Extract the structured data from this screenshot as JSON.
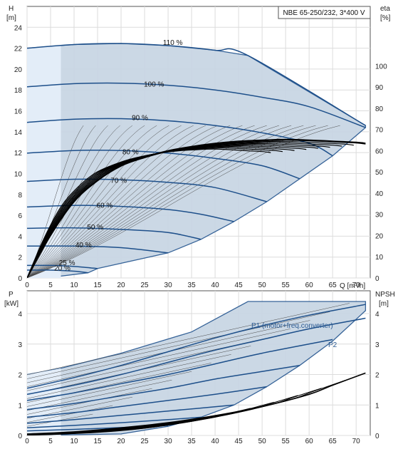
{
  "chart_data": [
    {
      "type": "line",
      "title": "NBE 65-250/232, 3*400 V",
      "xlabel": "Q [m³/h]",
      "ylabel": "H",
      "ylabel_unit": "[m]",
      "y2label": "eta",
      "y2label_unit": "[%]",
      "xlim": [
        0,
        73
      ],
      "ylim": [
        0,
        26
      ],
      "y2lim": [
        0,
        128
      ],
      "xticks": [
        0,
        5,
        10,
        15,
        20,
        25,
        30,
        35,
        40,
        45,
        50,
        55,
        60,
        65,
        70
      ],
      "yticks": [
        0,
        2,
        4,
        6,
        8,
        10,
        12,
        14,
        16,
        18,
        20,
        22,
        24
      ],
      "y2ticks": [
        0,
        10,
        20,
        30,
        40,
        50,
        60,
        70,
        80,
        90,
        100
      ],
      "grid": true,
      "head_curves": [
        {
          "name": "110 %",
          "x": [
            0,
            10,
            20,
            30,
            40,
            47,
            72
          ],
          "y": [
            22.0,
            22.35,
            22.45,
            22.25,
            21.8,
            21.3,
            14.6
          ]
        },
        {
          "name": "100 %",
          "x": [
            0,
            10,
            20,
            30,
            40,
            50,
            60,
            72
          ],
          "y": [
            18.3,
            18.6,
            18.65,
            18.45,
            18.0,
            17.3,
            16.4,
            14.4
          ]
        },
        {
          "name": "90 %",
          "x": [
            0,
            10,
            20,
            30,
            40,
            50,
            60,
            65
          ],
          "y": [
            14.9,
            15.2,
            15.25,
            15.05,
            14.6,
            13.9,
            12.9,
            11.7
          ]
        },
        {
          "name": "80 %",
          "x": [
            0,
            10,
            20,
            30,
            40,
            50,
            58
          ],
          "y": [
            11.95,
            12.2,
            12.2,
            11.95,
            11.45,
            10.75,
            9.5
          ]
        },
        {
          "name": "70 %",
          "x": [
            0,
            10,
            20,
            30,
            40,
            51
          ],
          "y": [
            9.25,
            9.45,
            9.4,
            9.15,
            8.65,
            7.3
          ]
        },
        {
          "name": "60 %",
          "x": [
            0,
            10,
            20,
            30,
            37,
            44
          ],
          "y": [
            6.8,
            6.95,
            6.85,
            6.55,
            6.1,
            5.4
          ]
        },
        {
          "name": "50 %",
          "x": [
            0,
            10,
            20,
            30,
            37
          ],
          "y": [
            4.75,
            4.8,
            4.65,
            4.35,
            3.7
          ]
        },
        {
          "name": "40 %",
          "x": [
            0,
            10,
            20,
            30
          ],
          "y": [
            3.05,
            3.05,
            2.9,
            2.4
          ]
        },
        {
          "name": "25 %",
          "x": [
            0,
            5,
            10,
            15
          ],
          "y": [
            1.2,
            1.2,
            1.1,
            0.9
          ]
        },
        {
          "name": "20 %",
          "x": [
            0,
            5,
            10,
            13
          ],
          "y": [
            0.75,
            0.75,
            0.65,
            0.5
          ]
        }
      ],
      "curve_labels": [
        "110 %",
        "100 %",
        "90 %",
        "80 %",
        "70 %",
        "60 %",
        "50 %",
        "40 %",
        "25 %",
        "20 %"
      ],
      "efficiency_curve": {
        "x": [
          0,
          5,
          10,
          15,
          20,
          25,
          30,
          35,
          40,
          45,
          50,
          55,
          60,
          65,
          70,
          72
        ],
        "y": [
          0,
          20,
          36,
          46,
          53,
          57,
          60,
          62,
          63.5,
          64.5,
          65,
          65.3,
          65,
          64.5,
          64,
          63.5
        ]
      }
    },
    {
      "type": "line",
      "xlabel": "",
      "ylabel": "P",
      "ylabel_unit": "[kW]",
      "y2label": "NPSH",
      "y2label_unit": "[m]",
      "xlim": [
        0,
        73
      ],
      "ylim": [
        0,
        4.75
      ],
      "y2lim": [
        0,
        4.75
      ],
      "yticks": [
        0,
        1,
        2,
        3,
        4
      ],
      "y2ticks": [
        0,
        1,
        2,
        3,
        4
      ],
      "grid": true,
      "series": [
        {
          "name": "P1 (motor+freq.converter)",
          "x": [
            0,
            10,
            20,
            30,
            40,
            50,
            60,
            72
          ],
          "y": [
            1.55,
            1.9,
            2.3,
            2.75,
            3.2,
            3.6,
            3.95,
            4.3
          ]
        },
        {
          "name": "P2",
          "x": [
            0,
            10,
            20,
            30,
            40,
            50,
            60,
            72
          ],
          "y": [
            1.35,
            1.65,
            2.0,
            2.4,
            2.8,
            3.15,
            3.5,
            3.85
          ]
        },
        {
          "x": [
            0,
            10,
            20,
            30,
            40,
            50,
            65
          ],
          "y": [
            1.15,
            1.4,
            1.7,
            2.0,
            2.35,
            2.7,
            3.15
          ]
        },
        {
          "x": [
            0,
            10,
            20,
            30,
            40,
            50,
            58
          ],
          "y": [
            0.85,
            1.05,
            1.3,
            1.55,
            1.85,
            2.1,
            2.3
          ]
        },
        {
          "x": [
            0,
            10,
            20,
            30,
            40,
            51
          ],
          "y": [
            0.6,
            0.75,
            0.95,
            1.15,
            1.35,
            1.6
          ]
        },
        {
          "x": [
            0,
            10,
            20,
            30,
            44
          ],
          "y": [
            0.4,
            0.52,
            0.66,
            0.8,
            1.0
          ]
        },
        {
          "x": [
            0,
            10,
            20,
            30,
            37
          ],
          "y": [
            0.25,
            0.33,
            0.42,
            0.52,
            0.6
          ]
        },
        {
          "x": [
            0,
            10,
            20,
            30
          ],
          "y": [
            0.15,
            0.2,
            0.26,
            0.33
          ]
        }
      ],
      "npsh_curve": {
        "x": [
          0,
          10,
          20,
          30,
          40,
          50,
          60,
          65,
          72
        ],
        "y": [
          0.05,
          0.12,
          0.25,
          0.42,
          0.65,
          0.95,
          1.35,
          1.65,
          2.05
        ]
      }
    }
  ]
}
